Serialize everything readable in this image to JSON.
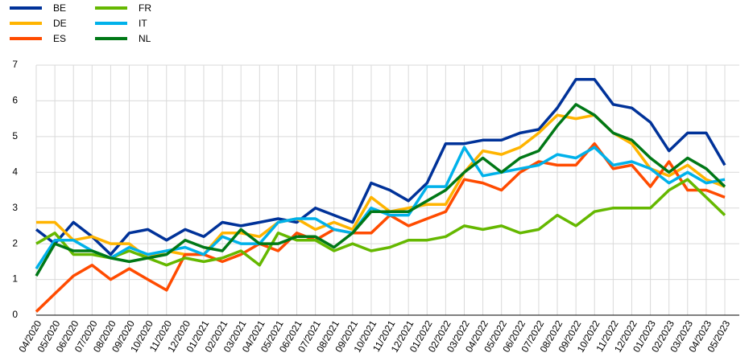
{
  "chart_data": {
    "type": "line",
    "categories": [
      "04/2020",
      "05/2020",
      "06/2020",
      "07/2020",
      "08/2020",
      "09/2020",
      "10/2020",
      "11/2020",
      "12/2020",
      "01/2021",
      "02/2021",
      "03/2021",
      "04/2021",
      "05/2021",
      "06/2021",
      "07/2021",
      "08/2021",
      "09/2021",
      "10/2021",
      "11/2021",
      "12/2021",
      "01/2022",
      "02/2022",
      "03/2022",
      "04/2022",
      "05/2022",
      "06/2022",
      "07/2022",
      "08/2022",
      "09/2022",
      "10/2022",
      "11/2022",
      "12/2022",
      "01/2023",
      "02/2023",
      "03/2023",
      "04/2023",
      "05/2023"
    ],
    "series": [
      {
        "name": "BE",
        "color": "#003299",
        "values": [
          2.4,
          2.0,
          2.6,
          2.2,
          1.7,
          2.3,
          2.4,
          2.1,
          2.4,
          2.2,
          2.6,
          2.5,
          2.6,
          2.7,
          2.6,
          3.0,
          2.8,
          2.6,
          3.7,
          3.5,
          3.2,
          3.7,
          4.8,
          4.8,
          4.9,
          4.9,
          5.1,
          5.2,
          5.8,
          6.6,
          6.6,
          5.9,
          5.8,
          5.4,
          4.6,
          5.1,
          5.1,
          4.2
        ]
      },
      {
        "name": "DE",
        "color": "#ffb400",
        "values": [
          2.6,
          2.6,
          2.1,
          2.2,
          2.0,
          2.0,
          1.6,
          1.8,
          1.7,
          1.7,
          2.3,
          2.3,
          2.2,
          2.6,
          2.7,
          2.4,
          2.6,
          2.4,
          3.3,
          2.9,
          3.0,
          3.1,
          3.1,
          4.0,
          4.6,
          4.5,
          4.7,
          5.1,
          5.6,
          5.5,
          5.6,
          5.1,
          4.8,
          4.1,
          3.9,
          4.2,
          3.8,
          3.6
        ]
      },
      {
        "name": "ES",
        "color": "#ff4b00",
        "values": [
          0.1,
          0.6,
          1.1,
          1.4,
          1.0,
          1.3,
          1.0,
          0.7,
          1.7,
          1.7,
          1.5,
          1.7,
          2.0,
          1.8,
          2.3,
          2.1,
          2.4,
          2.3,
          2.3,
          2.8,
          2.5,
          2.7,
          2.9,
          3.8,
          3.7,
          3.5,
          4.0,
          4.3,
          4.2,
          4.2,
          4.8,
          4.1,
          4.2,
          3.6,
          4.3,
          3.5,
          3.5,
          3.3
        ]
      },
      {
        "name": "FR",
        "color": "#65b800",
        "values": [
          2.0,
          2.3,
          1.7,
          1.7,
          1.6,
          1.8,
          1.6,
          1.4,
          1.6,
          1.5,
          1.6,
          1.8,
          1.4,
          2.3,
          2.1,
          2.1,
          1.8,
          2.0,
          1.8,
          1.9,
          2.1,
          2.1,
          2.2,
          2.5,
          2.4,
          2.5,
          2.3,
          2.4,
          2.8,
          2.5,
          2.9,
          3.0,
          3.0,
          3.0,
          3.5,
          3.8,
          3.3,
          2.8
        ]
      },
      {
        "name": "IT",
        "color": "#00b1ea",
        "values": [
          1.3,
          2.1,
          2.1,
          1.8,
          1.6,
          1.9,
          1.7,
          1.8,
          1.9,
          1.7,
          2.2,
          2.0,
          2.0,
          2.6,
          2.7,
          2.7,
          2.4,
          2.3,
          3.0,
          2.8,
          2.8,
          3.6,
          3.6,
          4.7,
          3.9,
          4.0,
          4.1,
          4.2,
          4.5,
          4.4,
          4.7,
          4.2,
          4.3,
          4.1,
          3.7,
          4.0,
          3.7,
          3.8
        ]
      },
      {
        "name": "NL",
        "color": "#007816",
        "values": [
          1.1,
          2.0,
          1.8,
          1.8,
          1.6,
          1.5,
          1.6,
          1.7,
          2.1,
          1.9,
          1.8,
          2.4,
          2.0,
          2.0,
          2.2,
          2.2,
          1.9,
          2.3,
          2.9,
          2.9,
          2.9,
          3.2,
          3.5,
          4.0,
          4.4,
          4.0,
          4.4,
          4.6,
          5.3,
          5.9,
          5.6,
          5.1,
          4.9,
          4.4,
          4.0,
          4.4,
          4.1,
          3.6
        ]
      }
    ],
    "ylim": [
      0,
      7
    ],
    "yticks": [
      0,
      1,
      2,
      3,
      4,
      5,
      6,
      7
    ],
    "grid": true
  }
}
